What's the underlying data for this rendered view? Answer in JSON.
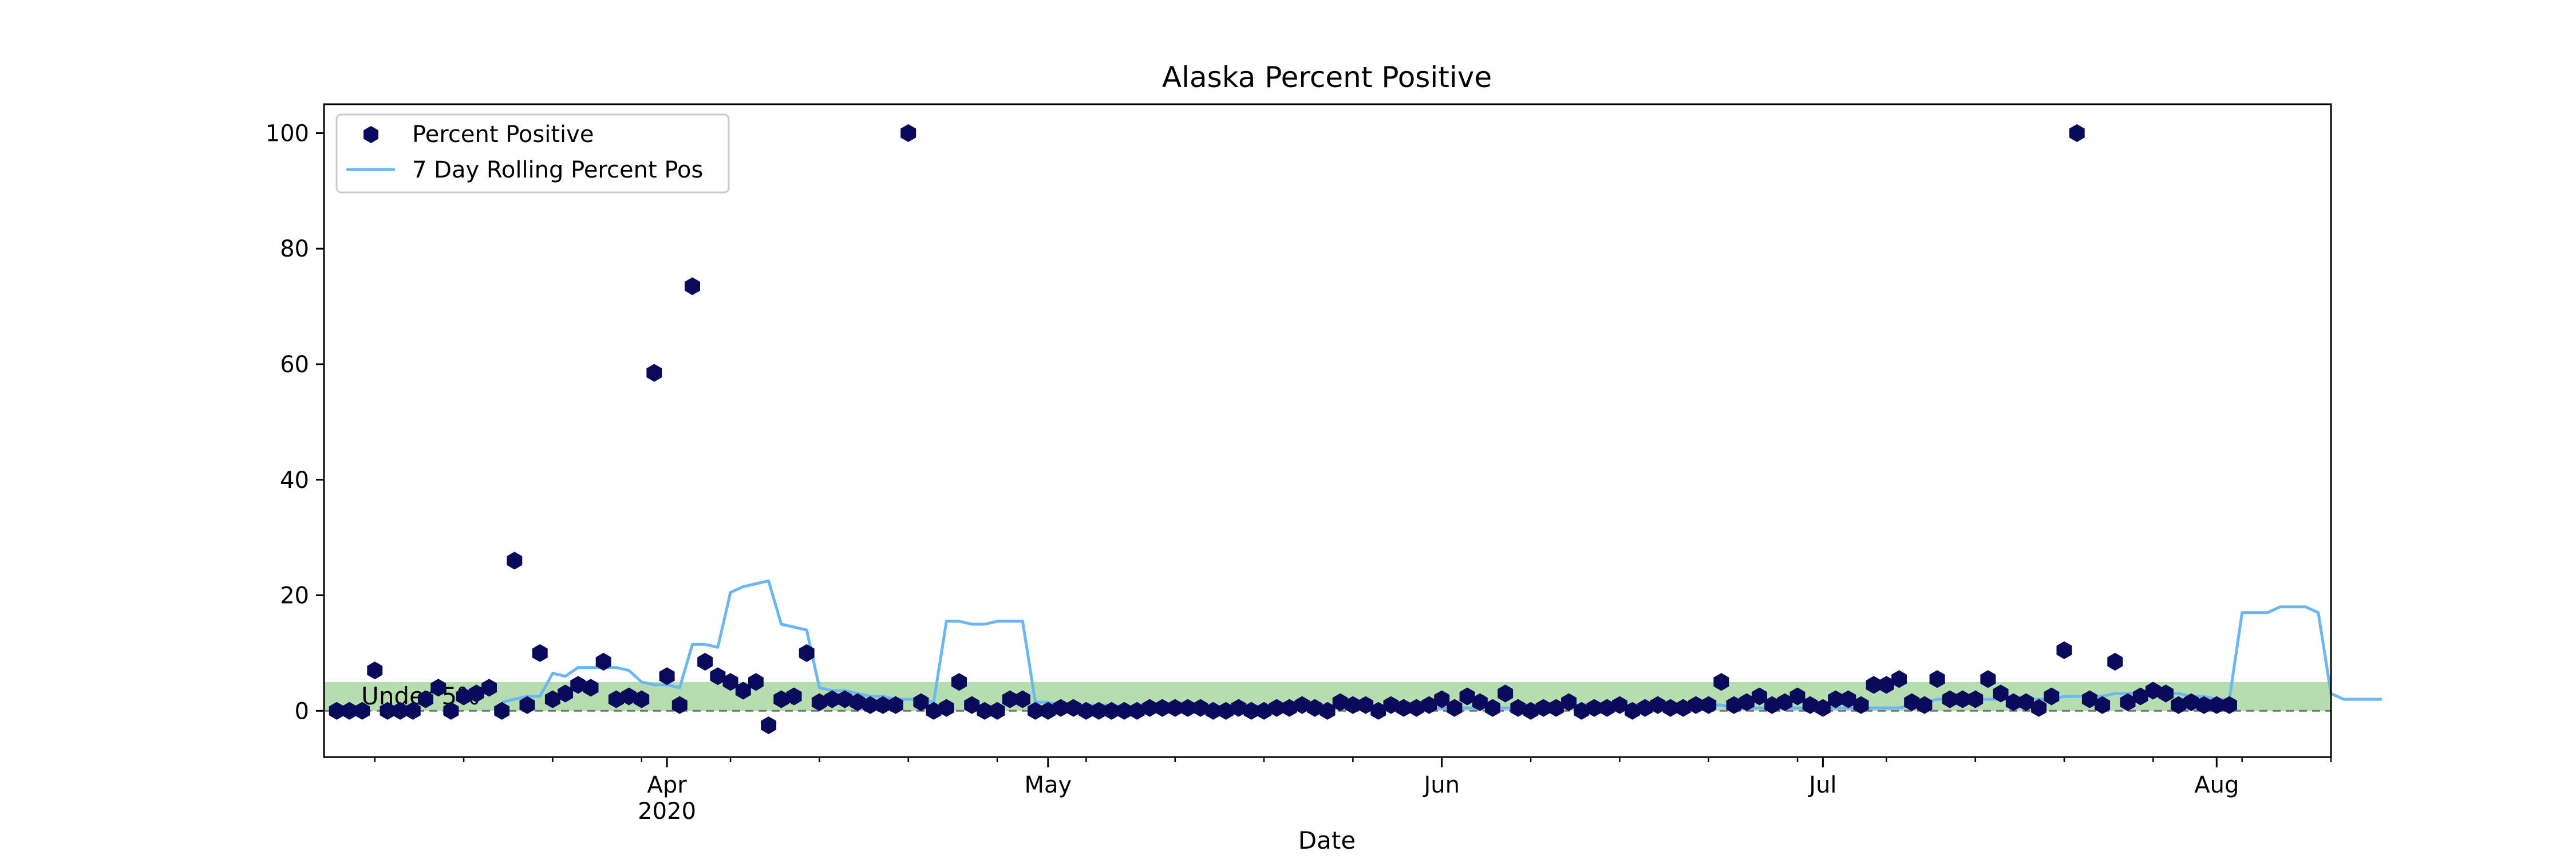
{
  "chart_data": {
    "type": "scatter",
    "title": "Alaska Percent Positive",
    "xlabel": "Date",
    "ylabel": "",
    "x_start": "2020-03-05",
    "x_end": "2020-08-10",
    "ylim": [
      -8,
      105
    ],
    "y_ticks": [
      0,
      20,
      40,
      60,
      80,
      100
    ],
    "x_major_ticks": [
      {
        "date": "2020-04-01",
        "label": "Apr",
        "sublabel": "2020"
      },
      {
        "date": "2020-05-01",
        "label": "May",
        "sublabel": ""
      },
      {
        "date": "2020-06-01",
        "label": "Jun",
        "sublabel": ""
      },
      {
        "date": "2020-07-01",
        "label": "Jul",
        "sublabel": ""
      },
      {
        "date": "2020-08-01",
        "label": "Aug",
        "sublabel": ""
      }
    ],
    "grid": false,
    "legend_position": "top-left",
    "colors": {
      "points": "#0a0a5c",
      "rolling": "#6bb6f5",
      "band": "#a8d8a0",
      "baseline": "#777777"
    },
    "band": {
      "from": 0,
      "to": 5,
      "label": "Under 5%"
    },
    "baseline_value": 0,
    "series": [
      {
        "name": "Percent Positive",
        "kind": "points",
        "start": "2020-03-06",
        "values": [
          0,
          0,
          0,
          7,
          0,
          0,
          0,
          2,
          4,
          0,
          2.5,
          3,
          4,
          0,
          26,
          1,
          10,
          2,
          3,
          4.5,
          4,
          8.5,
          2,
          2.5,
          2,
          58.5,
          6,
          1,
          73.5,
          8.5,
          6,
          5,
          3.5,
          5,
          -2.5,
          2,
          2.5,
          10,
          1.5,
          2,
          2,
          1.5,
          1,
          1,
          1,
          100,
          1.5,
          0,
          0.5,
          5,
          1,
          0,
          0,
          2,
          2,
          0,
          0,
          0.5,
          0.5,
          0,
          0,
          0,
          0,
          0,
          0.5,
          0.5,
          0.5,
          0.5,
          0.5,
          0,
          0,
          0.5,
          0,
          0,
          0.5,
          0.5,
          1,
          0.5,
          0,
          1.5,
          1,
          1,
          0,
          1,
          0.5,
          0.5,
          1,
          2,
          0.5,
          2.5,
          1.5,
          0.5,
          3,
          0.5,
          0,
          0.5,
          0.5,
          1.5,
          0,
          0.5,
          0.5,
          1,
          0,
          0.5,
          1,
          0.5,
          0.5,
          1,
          1,
          5,
          1,
          1.5,
          2.5,
          1,
          1.5,
          2.5,
          1,
          0.5,
          2,
          2,
          1,
          4.5,
          4.5,
          5.5,
          1.5,
          1,
          5.5,
          2,
          2,
          2,
          5.5,
          3,
          1.5,
          1.5,
          0.5,
          2.5,
          10.5,
          100,
          2,
          1,
          8.5,
          1.5,
          2.5,
          3.5,
          3,
          1,
          1.5,
          1,
          1,
          1
        ]
      },
      {
        "name": "7 Day Rolling Percent Pos",
        "kind": "line",
        "start": "2020-03-19",
        "values": [
          1.5,
          2,
          2.5,
          2.5,
          6.5,
          6,
          7.5,
          7.5,
          7.5,
          7.5,
          7,
          5,
          4.5,
          4.5,
          4,
          11.5,
          11.5,
          11,
          20.5,
          21.5,
          22,
          22.5,
          15,
          14.5,
          14,
          4,
          3.5,
          3.5,
          3,
          2.5,
          2.5,
          2,
          2,
          2,
          1.5,
          15.5,
          15.5,
          15,
          15,
          15.5,
          15.5,
          15.5,
          1.5,
          1.5,
          1,
          1,
          1,
          1,
          1,
          0.5,
          0.5,
          0.5,
          0.5,
          0.5,
          0.5,
          0.5,
          0.5,
          0.5,
          0.5,
          0.5,
          0.5,
          0.5,
          0.5,
          0.5,
          0.5,
          0.5,
          0.5,
          0.5,
          0.5,
          0.5,
          0.5,
          0.5,
          0.5,
          0.5,
          0.5,
          0.5,
          0.5,
          0.5,
          0.5,
          0.5,
          0.5,
          0.5,
          0.5,
          1,
          1,
          1,
          1,
          1,
          1,
          1,
          1,
          1,
          1,
          1,
          1,
          1,
          1,
          0.5,
          0.5,
          0.5,
          0.5,
          0.5,
          0.5,
          0.5,
          0.5,
          0.5,
          0.5,
          0.5,
          0.5,
          0.5,
          0.5,
          1,
          1.5,
          2,
          2,
          2,
          2,
          2,
          2,
          2,
          2,
          2,
          2,
          2.5,
          2.5,
          2.5,
          2.5,
          3,
          3,
          3,
          3,
          3,
          3,
          2.5,
          2.5,
          2,
          2,
          17,
          17,
          17,
          18,
          18,
          18,
          17,
          3,
          2,
          2,
          2,
          2
        ]
      }
    ]
  }
}
